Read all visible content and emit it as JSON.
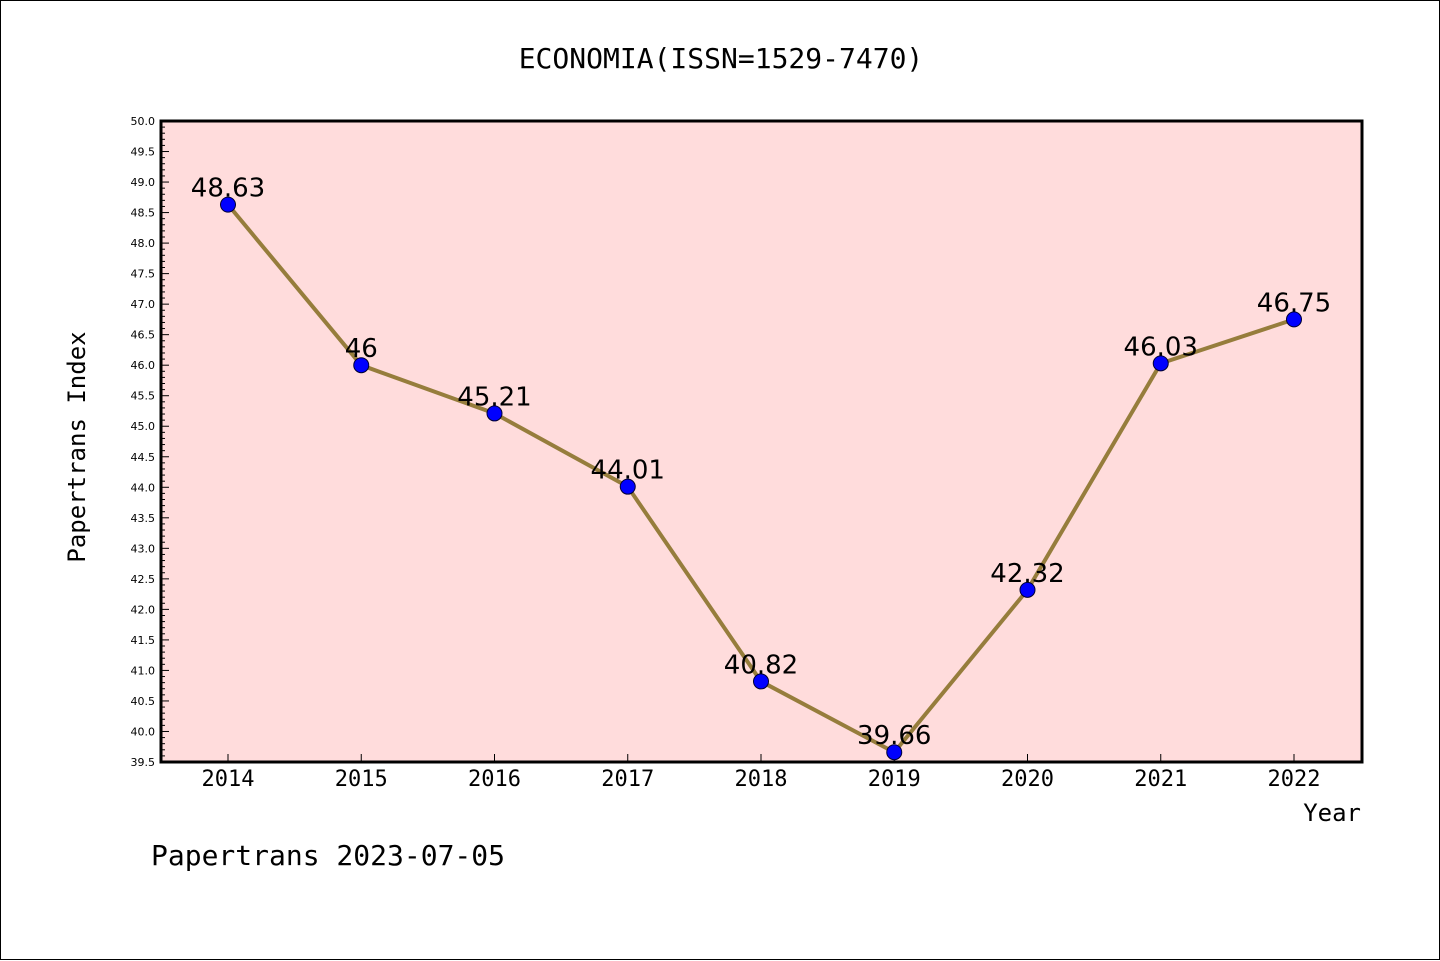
{
  "chart_data": {
    "type": "line",
    "title": "ECONOMIA(ISSN=1529-7470)",
    "xlabel": "Year",
    "ylabel": "Papertrans Index",
    "x": [
      "2014",
      "2015",
      "2016",
      "2017",
      "2018",
      "2019",
      "2020",
      "2021",
      "2022"
    ],
    "series": [
      {
        "values": [
          48.63,
          46,
          45.21,
          44.01,
          40.82,
          39.66,
          42.32,
          46.03,
          46.75
        ],
        "labels": [
          "48.63",
          "46",
          "45.21",
          "44.01",
          "40.82",
          "39.66",
          "42.32",
          "46.03",
          "46.75"
        ],
        "line_color": "#967d3c",
        "marker_color": "#0000ff"
      }
    ],
    "ylim": [
      39.5,
      50.0
    ],
    "yticks": [
      "39.5",
      "40.0",
      "40.5",
      "41.0",
      "41.5",
      "42.0",
      "42.5",
      "43.0",
      "43.5",
      "44.0",
      "44.5",
      "45.0",
      "45.5",
      "46.0",
      "46.5",
      "47.0",
      "47.5",
      "48.0",
      "48.5",
      "49.0",
      "49.5",
      "50.0"
    ],
    "plot_background": "#ffdcdc",
    "grid": false,
    "legend": "none"
  },
  "footer": {
    "text": "Papertrans 2023-07-05"
  }
}
